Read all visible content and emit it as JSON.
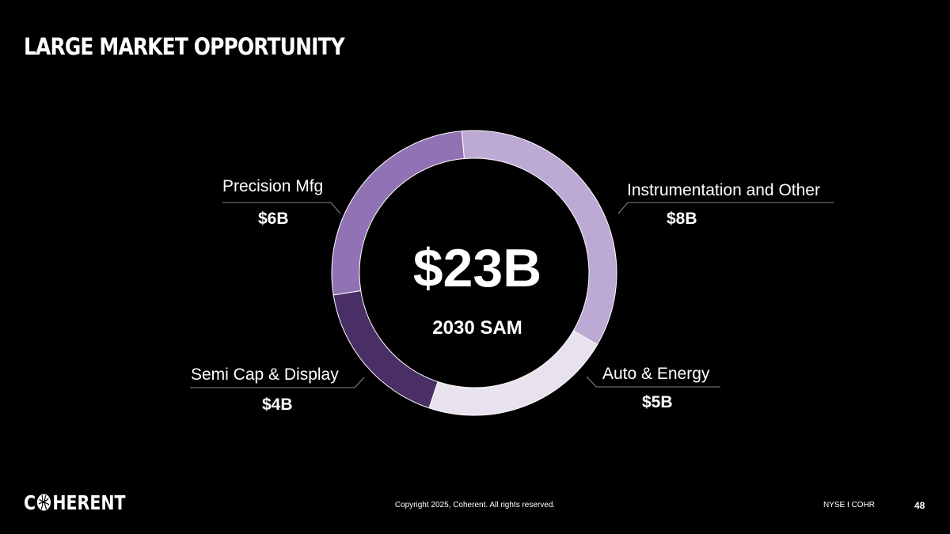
{
  "slide": {
    "title": "LARGE MARKET OPPORTUNITY"
  },
  "chart_data": {
    "type": "pie",
    "donut": true,
    "center_value": "$23B",
    "center_label": "2030 SAM",
    "unit": "$B",
    "start_angle_deg": -5,
    "direction": "clockwise",
    "slices": [
      {
        "name": "Instrumentation and Other",
        "value": 8,
        "label": "$8B",
        "color": "#BCA9D4"
      },
      {
        "name": "Auto & Energy",
        "value": 5,
        "label": "$5B",
        "color": "#E8E2EF"
      },
      {
        "name": "Semi Cap & Display",
        "value": 4,
        "label": "$4B",
        "color": "#4A2F66"
      },
      {
        "name": "Precision Mfg",
        "value": 6,
        "label": "$6B",
        "color": "#9173B5"
      }
    ]
  },
  "footer": {
    "logo_text_a": "C",
    "logo_text_b": "HERENT",
    "copyright": "Copyright 2025, Coherent. All rights reserved.",
    "ticker": "NYSE I COHR",
    "page_number": "48"
  }
}
